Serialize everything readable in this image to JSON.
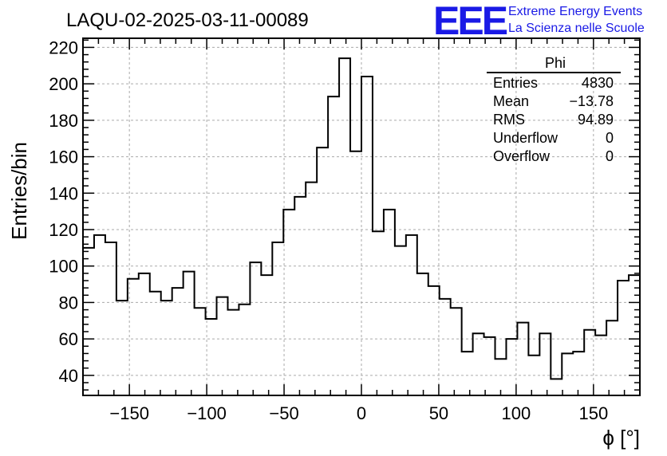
{
  "header": {
    "title": "LAQU-02-2025-03-11-00089",
    "logo": "EEE",
    "logo_line1": "Extreme Energy Events",
    "logo_line2": "La Scienza nelle Scuole"
  },
  "stats_box": {
    "title": "Phi",
    "rows": [
      {
        "label": "Entries",
        "value": "4830"
      },
      {
        "label": "Mean",
        "value": "−13.78"
      },
      {
        "label": "RMS",
        "value": "94.89"
      },
      {
        "label": "Underflow",
        "value": "0"
      },
      {
        "label": "Overflow",
        "value": "0"
      }
    ]
  },
  "colors": {
    "logo": "#1a1ae6",
    "line": "#000000",
    "grid": "#aaaaaa"
  },
  "chart_data": {
    "type": "bar",
    "style": "step-histogram",
    "xlabel": "ϕ [°]",
    "ylabel": "Entries/bin",
    "xlim": [
      -180,
      180
    ],
    "ylim": [
      29,
      225
    ],
    "grid": true,
    "bin_width": 7.2,
    "x_ticks": [
      -150,
      -100,
      -50,
      0,
      50,
      100,
      150
    ],
    "x_tick_labels": [
      "−150",
      "−100",
      "−50",
      "0",
      "50",
      "100",
      "150"
    ],
    "y_ticks": [
      40,
      60,
      80,
      100,
      120,
      140,
      160,
      180,
      200,
      220
    ],
    "y_tick_labels": [
      "40",
      "60",
      "80",
      "100",
      "120",
      "140",
      "160",
      "180",
      "200",
      "220"
    ],
    "values": [
      110,
      117,
      113,
      81,
      93,
      96,
      86,
      81,
      88,
      97,
      77,
      71,
      83,
      76,
      79,
      102,
      95,
      113,
      131,
      138,
      146,
      165,
      193,
      214,
      163,
      204,
      119,
      131,
      111,
      117,
      96,
      89,
      82,
      77,
      53,
      63,
      61,
      49,
      60,
      69,
      51,
      63,
      38,
      52,
      53,
      65,
      62,
      70,
      92,
      95
    ]
  }
}
